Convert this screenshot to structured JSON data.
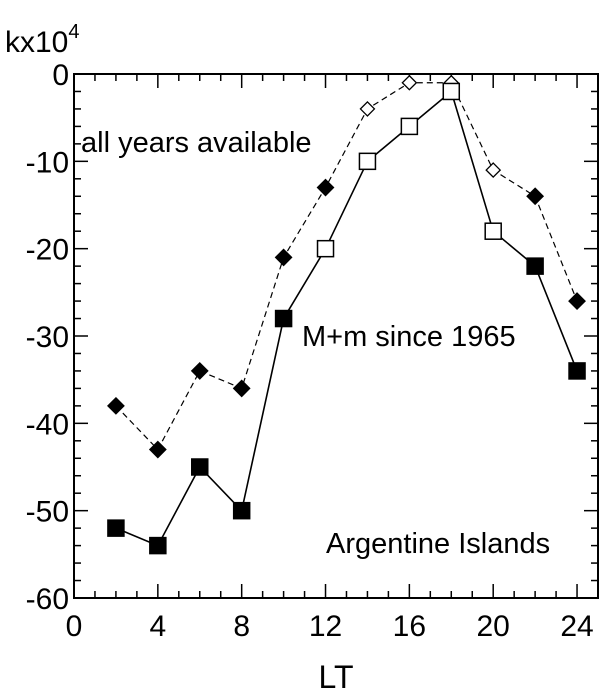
{
  "chart_data": {
    "type": "line",
    "ylabel": "kx10",
    "ylabel_superscript": "4",
    "xlabel": "LT",
    "xlim": [
      0,
      25
    ],
    "ylim": [
      -60,
      0
    ],
    "x_ticks": [
      0,
      4,
      8,
      12,
      16,
      20,
      24
    ],
    "y_ticks": [
      0,
      -10,
      -20,
      -30,
      -40,
      -50,
      -60
    ],
    "grid": false,
    "annotations": {
      "series_all": "all years available",
      "series_since": "M+m since 1965",
      "station": "Argentine Islands"
    },
    "series": [
      {
        "name": "all years available",
        "line": "dashed",
        "marker": "diamond",
        "x": [
          2,
          4,
          6,
          8,
          10,
          12,
          14,
          16,
          18,
          20,
          22,
          24
        ],
        "y": [
          -38,
          -43,
          -34,
          -36,
          -21,
          -13,
          -4,
          -1,
          -1,
          -11,
          -14,
          -26
        ],
        "filled": [
          true,
          true,
          true,
          true,
          true,
          true,
          false,
          false,
          false,
          false,
          true,
          true
        ]
      },
      {
        "name": "M+m since 1965",
        "line": "solid",
        "marker": "square",
        "x": [
          2,
          4,
          6,
          8,
          10,
          12,
          14,
          16,
          18,
          20,
          22,
          24
        ],
        "y": [
          -52,
          -54,
          -45,
          -50,
          -28,
          -20,
          -10,
          -6,
          -2,
          -18,
          -22,
          -34
        ],
        "filled": [
          true,
          true,
          true,
          true,
          true,
          false,
          false,
          false,
          false,
          false,
          true,
          true
        ]
      }
    ]
  }
}
